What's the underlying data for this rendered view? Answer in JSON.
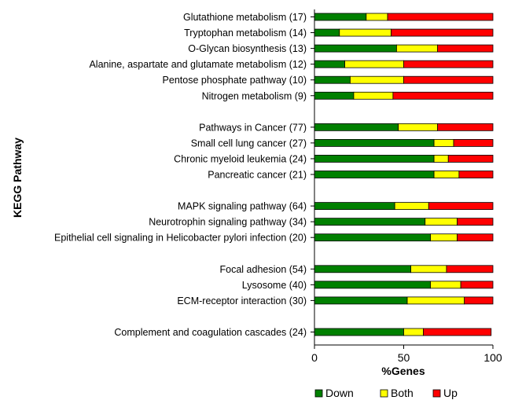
{
  "chart_data": {
    "type": "bar",
    "orientation": "horizontal",
    "stacked": true,
    "title": "",
    "xlabel": "%Genes",
    "ylabel": "KEGG Pathway",
    "xlim": [
      0,
      100
    ],
    "xticks": [
      "0",
      "50",
      "100"
    ],
    "categories": [
      "Glutathione metabolism (17)",
      "Tryptophan metabolism (14)",
      "O-Glycan biosynthesis (13)",
      "Alanine, aspartate and glutamate metabolism (12)",
      "Pentose phosphate pathway (10)",
      "Nitrogen metabolism (9)",
      "",
      "Pathways in Cancer (77)",
      "Small cell lung cancer (27)",
      "Chronic myeloid leukemia (24)",
      "Pancreatic cancer (21)",
      "",
      "MAPK signaling pathway (64)",
      "Neurotrophin signaling pathway (34)",
      "Epithelial cell signaling in Helicobacter pylori infection (20)",
      "",
      "Focal adhesion (54)",
      "Lysosome (40)",
      "ECM-receptor interaction (30)",
      "",
      "Complement and coagulation cascades (24)"
    ],
    "series": [
      {
        "name": "Down",
        "color": "#008000",
        "values": [
          29,
          14,
          46,
          17,
          20,
          22,
          null,
          47,
          67,
          67,
          67,
          null,
          45,
          62,
          65,
          null,
          54,
          65,
          52,
          null,
          50
        ]
      },
      {
        "name": "Both",
        "color": "#ffff00",
        "values": [
          12,
          29,
          23,
          33,
          30,
          22,
          null,
          22,
          11,
          8,
          14,
          null,
          19,
          18,
          15,
          null,
          20,
          17,
          32,
          null,
          11
        ]
      },
      {
        "name": "Up",
        "color": "#ff0000",
        "values": [
          59,
          57,
          31,
          50,
          50,
          56,
          null,
          31,
          22,
          25,
          19,
          null,
          36,
          20,
          20,
          null,
          26,
          18,
          16,
          null,
          38
        ]
      }
    ],
    "legend_position": "bottom",
    "grid": false
  }
}
